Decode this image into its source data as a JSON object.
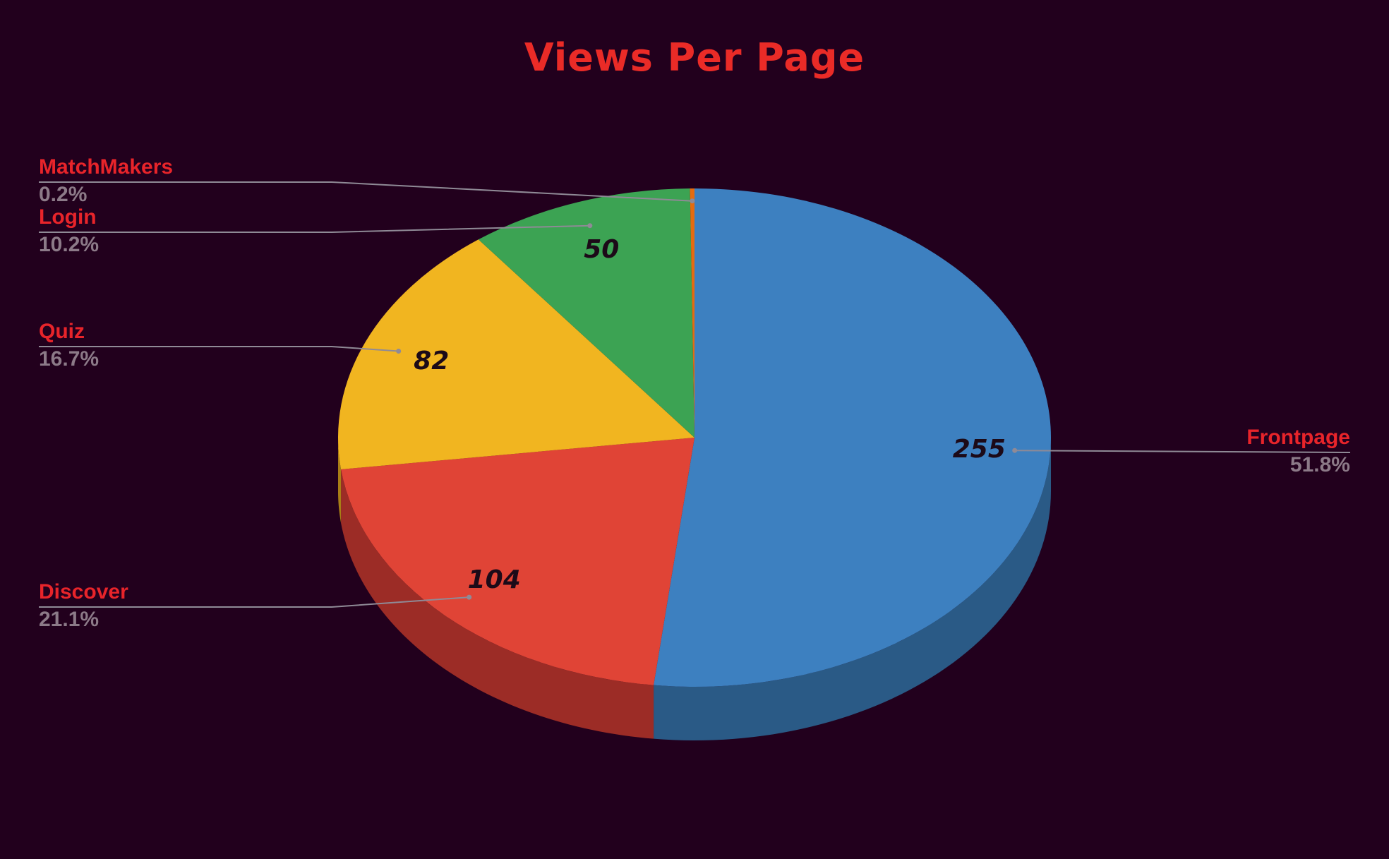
{
  "chart_data": {
    "type": "pie",
    "title": "Views Per Page",
    "three_d": true,
    "slices": [
      {
        "label": "Frontpage",
        "value": 255,
        "percent": "51.8%",
        "color": "#3d80c0",
        "side_color": "#2a5a86"
      },
      {
        "label": "Discover",
        "value": 104,
        "percent": "21.1%",
        "color": "#e04436",
        "side_color": "#9c2c26"
      },
      {
        "label": "Quiz",
        "value": 82,
        "percent": "16.7%",
        "color": "#f1b520",
        "side_color": "#a87e16"
      },
      {
        "label": "Login",
        "value": 50,
        "percent": "10.2%",
        "color": "#3ca353",
        "side_color": "#2a723a"
      },
      {
        "label": "MatchMakers",
        "value": 1,
        "percent": "0.2%",
        "color": "#e56b10",
        "side_color": "#a04b0b"
      }
    ],
    "legend": "outside labels with leader lines"
  },
  "colors": {
    "background": "#22001d",
    "title": "#ea2b27",
    "category_label": "#e8242a",
    "percent_label": "#8c7a88",
    "value_label": "#1c0a18",
    "leader_line": "#8f8a96"
  }
}
